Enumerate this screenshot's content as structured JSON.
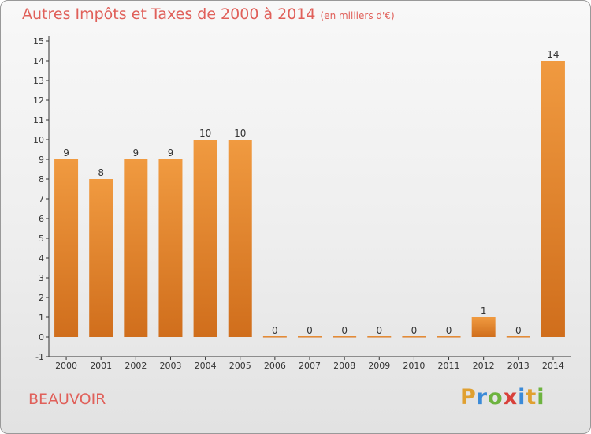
{
  "title": "Autres Impôts et Taxes de 2000 à 2014",
  "subtitle": "(en milliers d'€)",
  "place": "BEAUVOIR",
  "logo": {
    "letters": [
      "P",
      "r",
      "o",
      "x",
      "i",
      "t",
      "i"
    ],
    "colors": [
      "#e0a030",
      "#3a8ad8",
      "#6db33f",
      "#d8403a",
      "#3a8ad8",
      "#e0a030",
      "#6db33f"
    ]
  },
  "colors": {
    "bar": "#f09a40",
    "bar_dark": "#d06e1c",
    "title": "#e0605a"
  },
  "chart_data": {
    "type": "bar",
    "title": "Autres Impôts et Taxes de 2000 à 2014",
    "categories": [
      "2000",
      "2001",
      "2002",
      "2003",
      "2004",
      "2005",
      "2006",
      "2007",
      "2008",
      "2009",
      "2010",
      "2011",
      "2012",
      "2013",
      "2014"
    ],
    "values": [
      9,
      8,
      9,
      9,
      10,
      10,
      0,
      0,
      0,
      0,
      0,
      0,
      1,
      0,
      14
    ],
    "data_labels": [
      "9",
      "8",
      "9",
      "9",
      "10",
      "10",
      "0",
      "0",
      "0",
      "0",
      "0",
      "0",
      "1",
      "0",
      "14"
    ],
    "y_ticks": [
      "-1",
      "0",
      "1",
      "2",
      "3",
      "4",
      "5",
      "6",
      "7",
      "8",
      "9",
      "10",
      "11",
      "12",
      "13",
      "14",
      "15"
    ],
    "ylim": [
      -1,
      15
    ],
    "grid": false
  }
}
